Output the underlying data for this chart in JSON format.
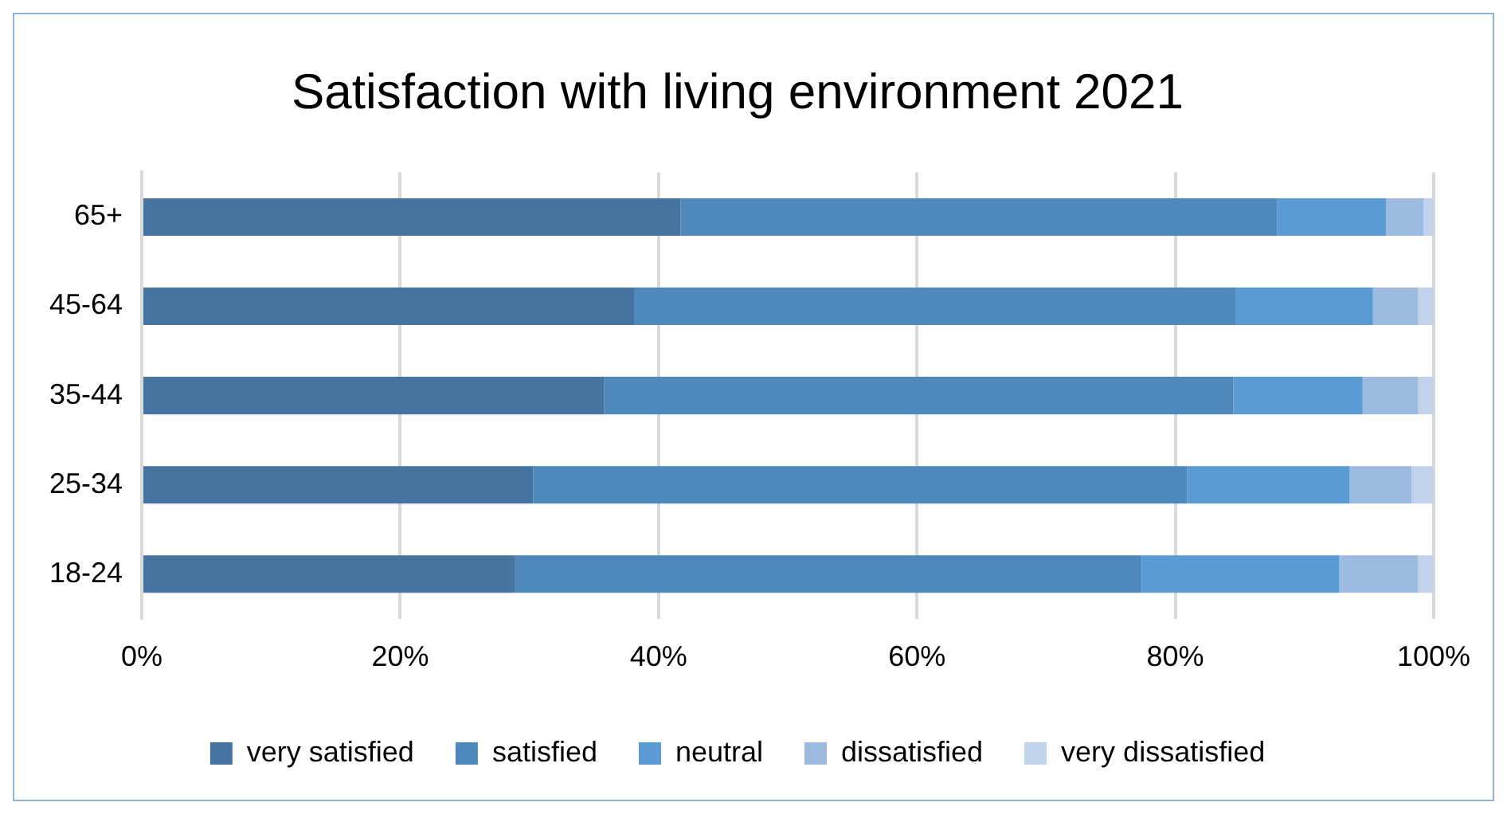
{
  "chart_data": {
    "type": "bar",
    "orientation": "horizontal",
    "stacked": true,
    "title": "Satisfaction with living environment 2021",
    "categories": [
      "65+",
      "45-64",
      "35-44",
      "25-34",
      "18-24"
    ],
    "series": [
      {
        "name": "very satisfied",
        "color": "#44749f",
        "values": [
          41.7,
          38.1,
          35.8,
          30.3,
          28.9
        ]
      },
      {
        "name": "satisfied",
        "color": "#4f88bb",
        "values": [
          46.2,
          46.6,
          48.7,
          50.6,
          48.5
        ]
      },
      {
        "name": "neutral",
        "color": "#5b9bd5",
        "values": [
          8.4,
          10.6,
          10.0,
          12.6,
          15.3
        ]
      },
      {
        "name": "dissatisfied",
        "color": "#9dbbe0",
        "values": [
          2.9,
          3.5,
          4.3,
          4.8,
          6.1
        ]
      },
      {
        "name": "very dissatisfied",
        "color": "#c0d3ea",
        "values": [
          0.8,
          1.2,
          1.2,
          1.7,
          1.2
        ]
      }
    ],
    "xlim": [
      0,
      100
    ],
    "xticks": [
      {
        "value": 0,
        "label": "0%"
      },
      {
        "value": 20,
        "label": "20%"
      },
      {
        "value": 40,
        "label": "40%"
      },
      {
        "value": 60,
        "label": "60%"
      },
      {
        "value": 80,
        "label": "80%"
      },
      {
        "value": 100,
        "label": "100%"
      }
    ],
    "grid": "x",
    "legend": "bottom"
  }
}
